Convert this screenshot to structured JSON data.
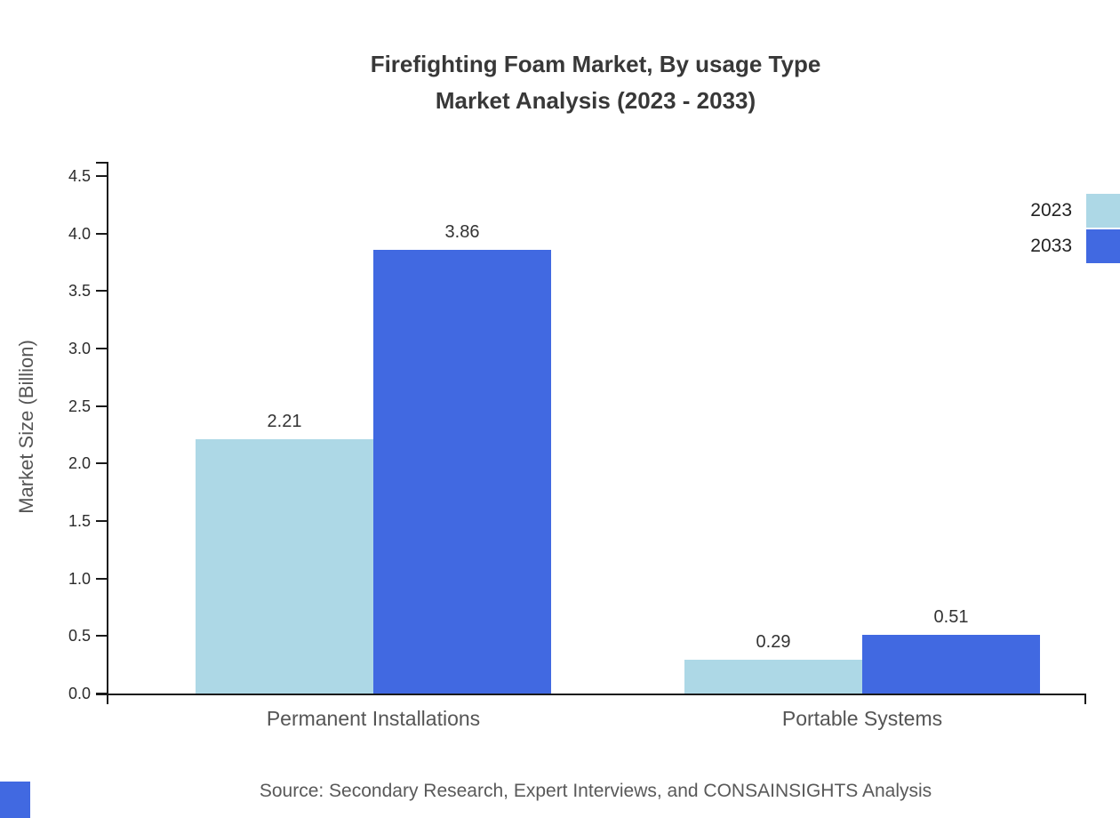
{
  "title": {
    "line1": "Firefighting Foam Market, By usage Type",
    "line2": "Market Analysis (2023 - 2033)"
  },
  "source_note": "Source: Secondary Research, Expert Interviews, and CONSAINSIGHTS Analysis",
  "colors": {
    "series_2023": "#ADD8E6",
    "series_2033": "#4169E1",
    "axis": "#1a1a1a"
  },
  "chart_data": {
    "type": "bar",
    "title": "Firefighting Foam Market, By usage Type Market Analysis (2023 - 2033)",
    "categories": [
      "Permanent Installations",
      "Portable Systems"
    ],
    "series": [
      {
        "name": "2023",
        "color": "#ADD8E6",
        "values": [
          2.21,
          0.29
        ]
      },
      {
        "name": "2033",
        "color": "#4169E1",
        "values": [
          3.86,
          0.51
        ]
      }
    ],
    "value_labels": [
      "2.21",
      "3.86",
      "0.29",
      "0.51"
    ],
    "xlabel": "",
    "ylabel": "Market Size (Billion)",
    "ylim": [
      0,
      4.5
    ],
    "ytick_labels": [
      "0.0",
      "0.5",
      "1.0",
      "1.5",
      "2.0",
      "2.5",
      "3.0",
      "3.5",
      "4.0",
      "4.5"
    ],
    "grid": false,
    "legend_position": "top-right",
    "legend_entries": [
      "2023",
      "2033"
    ]
  }
}
